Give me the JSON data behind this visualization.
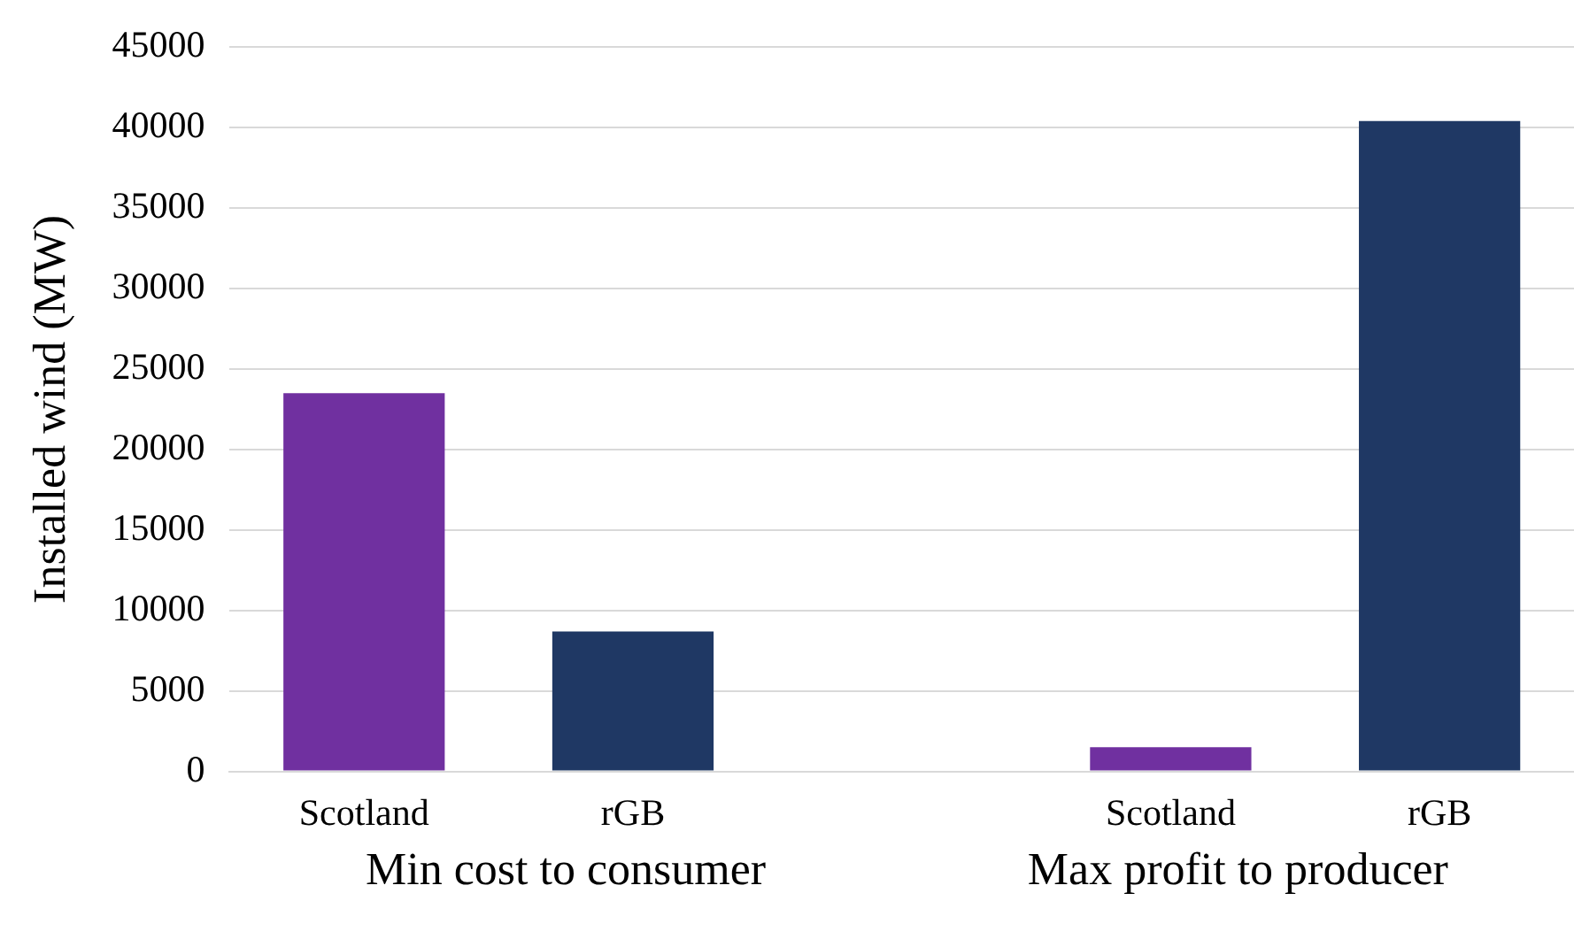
{
  "chart_data": {
    "type": "bar",
    "ylabel": "Installed wind (MW)",
    "categories": [
      "Scotland",
      "rGB",
      null,
      "Scotland",
      "rGB"
    ],
    "values": [
      23500,
      8700,
      null,
      1500,
      40400
    ],
    "colors": [
      "#7030a0",
      "#1f3864",
      null,
      "#7030a0",
      "#1f3864"
    ],
    "ylim": [
      0,
      45000
    ],
    "yticks": [
      0,
      5000,
      10000,
      15000,
      20000,
      25000,
      30000,
      35000,
      40000,
      45000
    ],
    "grid": "y",
    "legend": false,
    "annotations": [
      "Min cost to consumer",
      "Max profit to producer"
    ]
  }
}
